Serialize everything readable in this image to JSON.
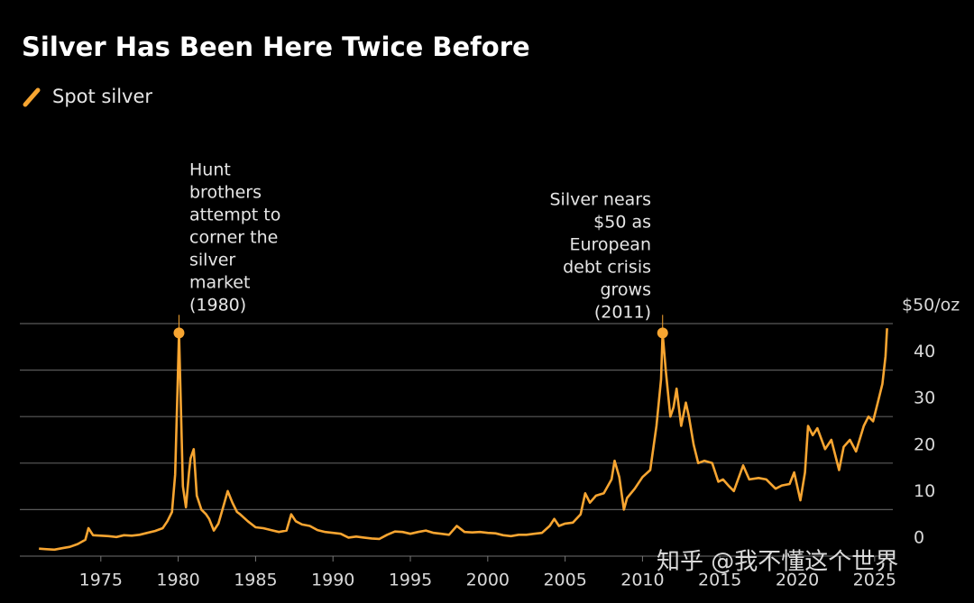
{
  "chart_data": {
    "type": "line",
    "title": "Silver Has Been Here Twice Before",
    "series": [
      {
        "name": "Spot silver",
        "color": "#f7a531",
        "x": [
          1971.0,
          1971.5,
          1972.0,
          1972.5,
          1973.0,
          1973.5,
          1974.0,
          1974.2,
          1974.5,
          1975.0,
          1975.5,
          1976.0,
          1976.5,
          1977.0,
          1977.5,
          1978.0,
          1978.5,
          1979.0,
          1979.3,
          1979.6,
          1979.8,
          1979.95,
          1980.05,
          1980.15,
          1980.3,
          1980.5,
          1980.7,
          1980.8,
          1981.0,
          1981.2,
          1981.5,
          1981.8,
          1982.0,
          1982.3,
          1982.6,
          1982.9,
          1983.2,
          1983.5,
          1983.8,
          1984.0,
          1984.5,
          1985.0,
          1985.5,
          1986.0,
          1986.5,
          1987.0,
          1987.3,
          1987.6,
          1988.0,
          1988.5,
          1989.0,
          1989.5,
          1990.0,
          1990.5,
          1991.0,
          1991.5,
          1992.0,
          1992.5,
          1993.0,
          1993.5,
          1994.0,
          1994.5,
          1995.0,
          1995.5,
          1996.0,
          1996.5,
          1997.0,
          1997.5,
          1998.0,
          1998.5,
          1999.0,
          1999.5,
          2000.0,
          2000.5,
          2001.0,
          2001.5,
          2002.0,
          2002.5,
          2003.0,
          2003.5,
          2004.0,
          2004.3,
          2004.6,
          2005.0,
          2005.5,
          2006.0,
          2006.3,
          2006.6,
          2007.0,
          2007.5,
          2008.0,
          2008.2,
          2008.5,
          2008.8,
          2009.0,
          2009.5,
          2010.0,
          2010.5,
          2010.9,
          2011.2,
          2011.3,
          2011.5,
          2011.8,
          2012.0,
          2012.2,
          2012.5,
          2012.8,
          2013.0,
          2013.3,
          2013.6,
          2014.0,
          2014.5,
          2014.9,
          2015.2,
          2015.6,
          2015.9,
          2016.5,
          2016.9,
          2017.5,
          2018.0,
          2018.6,
          2019.0,
          2019.5,
          2019.8,
          2020.2,
          2020.5,
          2020.7,
          2021.0,
          2021.3,
          2021.8,
          2022.2,
          2022.7,
          2023.0,
          2023.4,
          2023.8,
          2024.3,
          2024.6,
          2024.9,
          2025.2,
          2025.5,
          2025.7,
          2025.8
        ],
        "values": [
          1.6,
          1.5,
          1.4,
          1.7,
          2.0,
          2.6,
          3.5,
          6.0,
          4.5,
          4.4,
          4.3,
          4.1,
          4.5,
          4.4,
          4.6,
          5.0,
          5.4,
          6.0,
          7.5,
          9.5,
          17.5,
          35,
          48,
          35,
          15,
          10.5,
          18,
          21,
          23,
          13,
          10,
          9,
          8,
          5.5,
          7.0,
          10.5,
          14,
          11.5,
          9.5,
          9.0,
          7.5,
          6.2,
          6.0,
          5.6,
          5.2,
          5.5,
          9.0,
          7.5,
          6.8,
          6.5,
          5.6,
          5.2,
          5.0,
          4.8,
          4.0,
          4.2,
          4.0,
          3.8,
          3.7,
          4.6,
          5.3,
          5.2,
          4.8,
          5.2,
          5.5,
          5.0,
          4.8,
          4.6,
          6.5,
          5.2,
          5.1,
          5.2,
          5.0,
          4.9,
          4.5,
          4.3,
          4.6,
          4.6,
          4.8,
          5.0,
          6.5,
          8.0,
          6.5,
          7.0,
          7.2,
          9.0,
          13.5,
          11.5,
          13.0,
          13.5,
          16.5,
          20.5,
          17,
          10,
          12.5,
          14.5,
          17,
          18.5,
          28,
          38,
          48,
          40,
          30,
          32,
          36,
          28,
          33,
          30,
          24,
          20,
          20.5,
          20,
          16,
          16.5,
          15,
          14,
          19.5,
          16.5,
          16.8,
          16.5,
          14.5,
          15.2,
          15.5,
          18,
          12,
          18,
          28,
          26,
          27.5,
          23,
          25,
          18.5,
          23.5,
          25,
          22.5,
          28,
          30,
          29,
          33,
          37,
          43,
          49
        ]
      }
    ],
    "xlim": [
      1970,
      2026
    ],
    "xticks": [
      1975,
      1980,
      1985,
      1990,
      1995,
      2000,
      2005,
      2010,
      2015,
      2020,
      2025
    ],
    "ylim": [
      0,
      50
    ],
    "yticks": [
      0,
      10,
      20,
      30,
      40,
      {
        "value": 50,
        "label": "$50/oz"
      }
    ],
    "grid": true,
    "annotations": [
      [
        "Hunt",
        "brothers",
        "attempt to",
        "corner the",
        "silver",
        "market",
        "(1980)"
      ],
      [
        "Silver nears",
        "$50 as",
        "European",
        "debt crisis",
        "grows",
        "(2011)"
      ]
    ],
    "watermark": "知乎 @我不懂这个世界"
  }
}
